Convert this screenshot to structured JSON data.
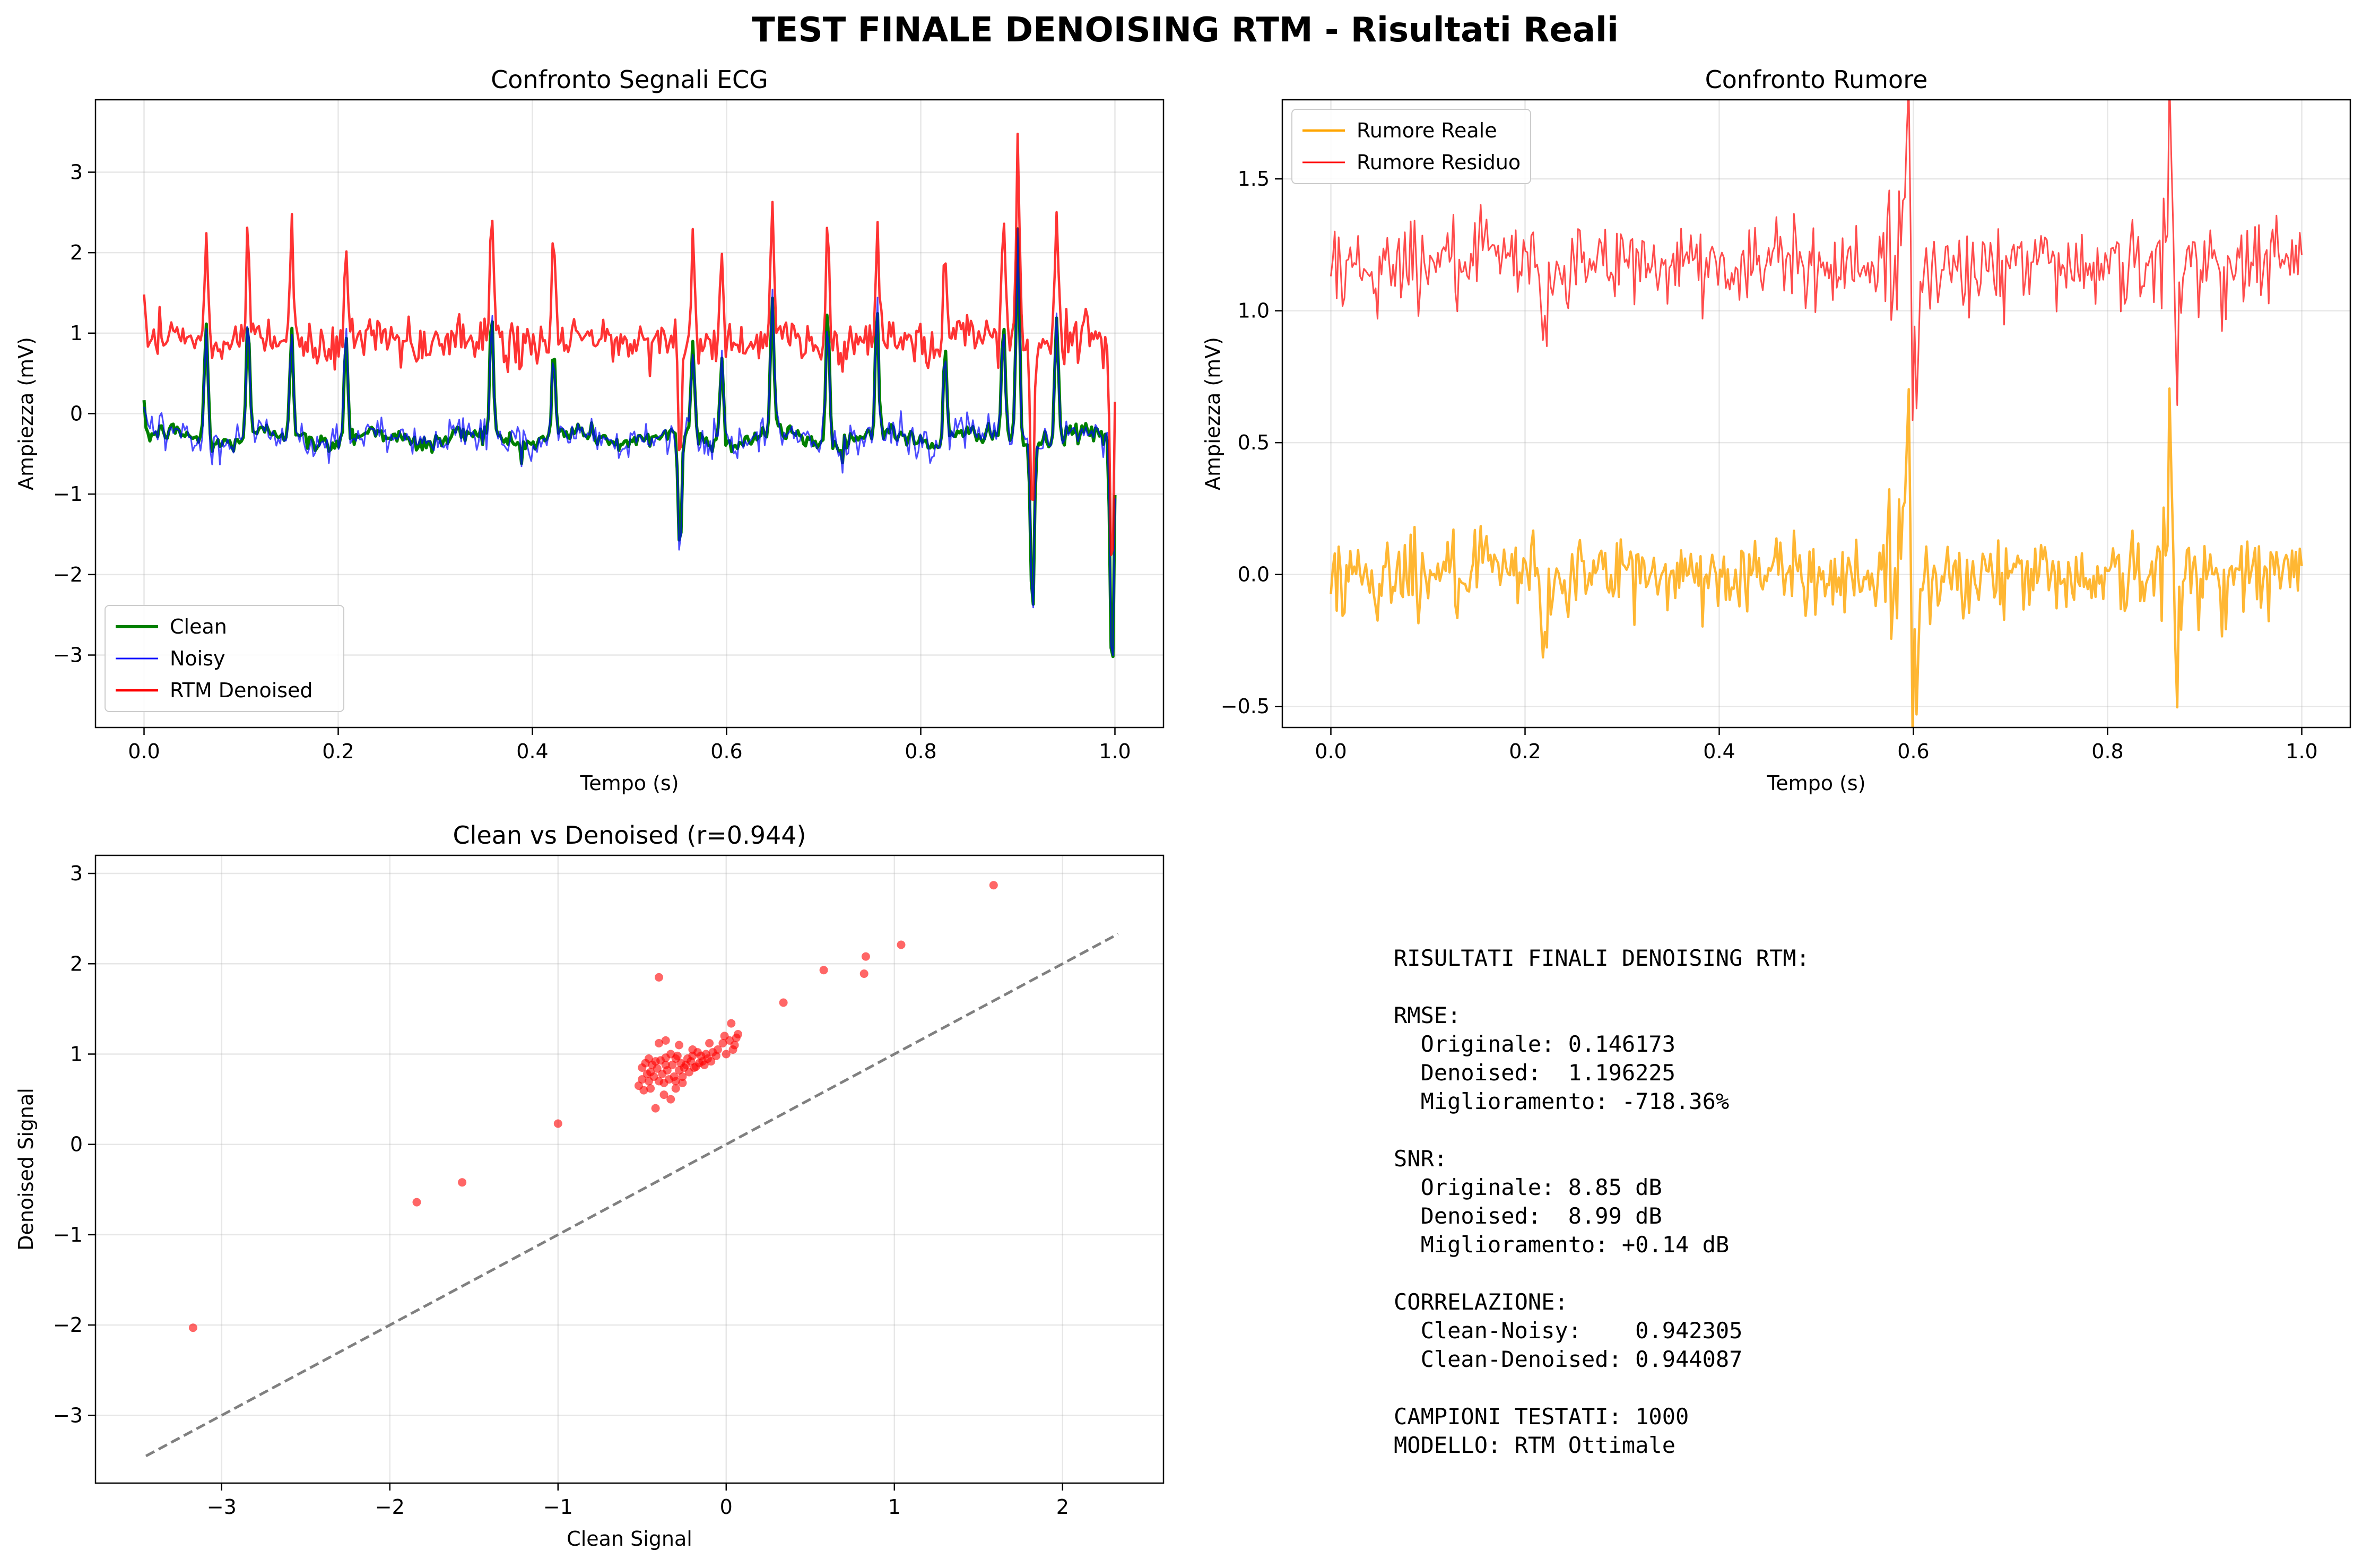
{
  "figure": {
    "suptitle": "TEST FINALE DENOISING RTM - Risultati Reali"
  },
  "chart_data": [
    {
      "id": "ecg",
      "type": "line",
      "title": "Confronto Segnali ECG",
      "xlabel": "Tempo (s)",
      "ylabel": "Ampiezza (mV)",
      "xlim": [
        -0.05,
        1.05
      ],
      "ylim": [
        -3.9,
        3.9
      ],
      "xticks": [
        0.0,
        0.2,
        0.4,
        0.6,
        0.8,
        1.0
      ],
      "xtick_labels": [
        "0.0",
        "0.2",
        "0.4",
        "0.6",
        "0.8",
        "1.0"
      ],
      "yticks": [
        -3,
        -2,
        -1,
        0,
        1,
        2,
        3
      ],
      "ytick_labels": [
        "−3",
        "−2",
        "−1",
        "0",
        "1",
        "2",
        "3"
      ],
      "grid": true,
      "legend_position": "lower-left",
      "series": [
        {
          "name": "Clean",
          "color": "#008000",
          "width": 2.0
        },
        {
          "name": "Noisy",
          "color": "#0000ff",
          "width": 1.0
        },
        {
          "name": "RTM Denoised",
          "color": "#ff0000",
          "width": 1.5
        }
      ],
      "x_range": [
        0.0,
        1.0
      ],
      "clean_baseline": -0.3,
      "denoised_offset": 1.2,
      "r_peaks": [
        {
          "t": 0.0,
          "v": 0.0
        },
        {
          "t": 0.064,
          "v": 1.2
        },
        {
          "t": 0.107,
          "v": 1.2
        },
        {
          "t": 0.152,
          "v": 1.1
        },
        {
          "t": 0.208,
          "v": 1.0
        },
        {
          "t": 0.358,
          "v": 1.2
        },
        {
          "t": 0.422,
          "v": 0.8
        },
        {
          "t": 0.552,
          "v": -1.85
        },
        {
          "t": 0.565,
          "v": 0.8
        },
        {
          "t": 0.595,
          "v": 0.8
        },
        {
          "t": 0.647,
          "v": 1.3
        },
        {
          "t": 0.704,
          "v": 1.4
        },
        {
          "t": 0.755,
          "v": 1.2
        },
        {
          "t": 0.825,
          "v": 0.9
        },
        {
          "t": 0.885,
          "v": 1.1
        },
        {
          "t": 0.9,
          "v": 2.3
        },
        {
          "t": 0.915,
          "v": -2.5
        },
        {
          "t": 0.94,
          "v": 1.2
        },
        {
          "t": 0.997,
          "v": -3.45
        }
      ]
    },
    {
      "id": "noise",
      "type": "line",
      "title": "Confronto Rumore",
      "xlabel": "Tempo (s)",
      "ylabel": "Ampiezza (mV)",
      "xlim": [
        -0.05,
        1.05
      ],
      "ylim": [
        -0.58,
        1.8
      ],
      "xticks": [
        0.0,
        0.2,
        0.4,
        0.6,
        0.8,
        1.0
      ],
      "xtick_labels": [
        "0.0",
        "0.2",
        "0.4",
        "0.6",
        "0.8",
        "1.0"
      ],
      "yticks": [
        -0.5,
        0.0,
        0.5,
        1.0,
        1.5
      ],
      "ytick_labels": [
        "−0.5",
        "0.0",
        "0.5",
        "1.0",
        "1.5"
      ],
      "grid": true,
      "legend_position": "upper-left",
      "series": [
        {
          "name": "Rumore Reale",
          "color": "#ffa500",
          "width": 1.5,
          "baseline": 0.0
        },
        {
          "name": "Rumore Residuo",
          "color": "#ff0000",
          "width": 1.0,
          "baseline": 1.18
        }
      ],
      "x_range": [
        0.0,
        1.0
      ],
      "bursts": [
        {
          "t": 0.22,
          "v": -0.42
        },
        {
          "t": 0.595,
          "v": 0.55
        },
        {
          "t": 0.6,
          "v": -0.48
        },
        {
          "t": 0.865,
          "v": 0.35
        },
        {
          "t": 0.87,
          "v": -0.3
        }
      ]
    },
    {
      "id": "scatter",
      "type": "scatter",
      "title": "Clean vs Denoised (r=0.944)",
      "xlabel": "Clean Signal",
      "ylabel": "Denoised Signal",
      "xlim": [
        -3.75,
        2.6
      ],
      "ylim": [
        -3.75,
        3.2
      ],
      "xticks": [
        -3,
        -2,
        -1,
        0,
        1,
        2
      ],
      "xtick_labels": [
        "−3",
        "−2",
        "−1",
        "0",
        "1",
        "2"
      ],
      "yticks": [
        -3,
        -2,
        -1,
        0,
        1,
        2,
        3
      ],
      "ytick_labels": [
        "−3",
        "−2",
        "−1",
        "0",
        "1",
        "2",
        "3"
      ],
      "grid": true,
      "point_color": "#ff0000",
      "identity_line": {
        "from": [
          -3.45,
          -3.45
        ],
        "to": [
          2.33,
          2.33
        ],
        "color": "#808080",
        "dash": true
      },
      "points": [
        [
          -3.17,
          -2.03
        ],
        [
          -1.84,
          -0.64
        ],
        [
          -1.57,
          -0.42
        ],
        [
          -1.0,
          0.23
        ],
        [
          -0.4,
          1.85
        ],
        [
          1.59,
          2.87
        ],
        [
          1.04,
          2.21
        ],
        [
          0.83,
          2.08
        ],
        [
          0.82,
          1.89
        ],
        [
          0.58,
          1.93
        ],
        [
          0.34,
          1.57
        ],
        [
          0.03,
          1.34
        ],
        [
          0.07,
          1.22
        ],
        [
          -0.01,
          1.2
        ],
        [
          0.04,
          1.05
        ],
        [
          -0.1,
          1.12
        ],
        [
          -0.2,
          1.05
        ],
        [
          -0.28,
          1.1
        ],
        [
          -0.36,
          1.15
        ],
        [
          -0.4,
          1.12
        ],
        [
          -0.46,
          0.95
        ],
        [
          -0.45,
          0.8
        ],
        [
          -0.5,
          0.85
        ],
        [
          -0.52,
          0.65
        ],
        [
          -0.5,
          0.72
        ],
        [
          -0.42,
          0.4
        ],
        [
          -0.37,
          0.55
        ],
        [
          -0.33,
          0.5
        ],
        [
          -0.3,
          0.62
        ],
        [
          -0.26,
          0.68
        ],
        [
          -0.22,
          0.8
        ],
        [
          -0.18,
          0.86
        ],
        [
          -0.14,
          0.92
        ],
        [
          -0.12,
          1.0
        ],
        [
          -0.08,
          1.02
        ],
        [
          -0.05,
          1.05
        ],
        [
          -0.02,
          1.12
        ],
        [
          0.02,
          1.15
        ],
        [
          0.06,
          1.18
        ],
        [
          -0.3,
          0.95
        ],
        [
          -0.32,
          0.88
        ],
        [
          -0.35,
          0.82
        ],
        [
          -0.38,
          0.78
        ],
        [
          -0.4,
          0.7
        ],
        [
          -0.43,
          0.75
        ],
        [
          -0.47,
          0.78
        ],
        [
          -0.48,
          0.9
        ],
        [
          -0.44,
          0.88
        ],
        [
          -0.41,
          0.84
        ],
        [
          -0.39,
          0.93
        ],
        [
          -0.36,
          0.96
        ],
        [
          -0.33,
          1.0
        ],
        [
          -0.29,
          0.98
        ],
        [
          -0.27,
          0.9
        ],
        [
          -0.25,
          0.85
        ],
        [
          -0.23,
          0.95
        ],
        [
          -0.2,
          0.98
        ],
        [
          -0.17,
          1.02
        ],
        [
          -0.15,
          0.98
        ],
        [
          -0.31,
          0.75
        ],
        [
          -0.34,
          0.72
        ],
        [
          -0.37,
          0.68
        ],
        [
          -0.45,
          0.62
        ],
        [
          -0.49,
          0.6
        ],
        [
          -0.28,
          0.82
        ],
        [
          -0.24,
          0.88
        ],
        [
          -0.21,
          0.92
        ],
        [
          -0.11,
          0.95
        ],
        [
          -0.06,
          0.98
        ],
        [
          -0.36,
          0.88
        ],
        [
          -0.42,
          0.92
        ],
        [
          -0.46,
          0.7
        ],
        [
          -0.3,
          0.7
        ],
        [
          -0.26,
          0.75
        ],
        [
          -0.19,
          0.85
        ],
        [
          -0.16,
          0.9
        ],
        [
          -0.13,
          0.88
        ],
        [
          -0.09,
          0.92
        ],
        [
          0.0,
          1.0
        ],
        [
          0.05,
          1.1
        ]
      ]
    }
  ],
  "stats_panel": {
    "lines": [
      "RISULTATI FINALI DENOISING RTM:",
      "",
      "RMSE:",
      "  Originale: 0.146173",
      "  Denoised:  1.196225",
      "  Miglioramento: -718.36%",
      "",
      "SNR:",
      "  Originale: 8.85 dB",
      "  Denoised:  8.99 dB",
      "  Miglioramento: +0.14 dB",
      "",
      "CORRELAZIONE:",
      "  Clean-Noisy:    0.942305",
      "  Clean-Denoised: 0.944087",
      "",
      "CAMPIONI TESTATI: 1000",
      "MODELLO: RTM Ottimale"
    ]
  }
}
